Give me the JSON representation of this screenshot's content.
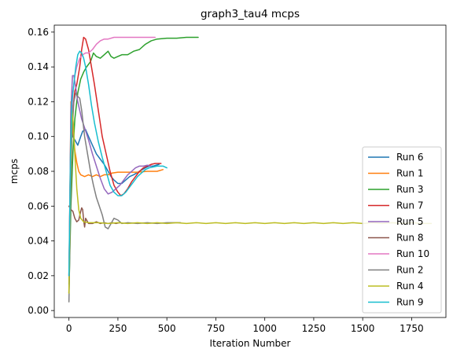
{
  "chart_data": {
    "type": "line",
    "title": "graph3_tau4 mcps",
    "xlabel": "Iteration Number",
    "ylabel": "mcps",
    "xlim": [
      -75,
      1925
    ],
    "ylim": [
      -0.004,
      0.164
    ],
    "xticks": [
      0,
      250,
      500,
      750,
      1000,
      1250,
      1500,
      1750
    ],
    "yticks": [
      0.0,
      0.02,
      0.04,
      0.06,
      0.08,
      0.1,
      0.12,
      0.14,
      0.16
    ],
    "ytick_labels": [
      "0.00",
      "0.02",
      "0.04",
      "0.06",
      "0.08",
      "0.10",
      "0.12",
      "0.14",
      "0.16"
    ],
    "grid": false,
    "legend_position": "lower-right",
    "series": [
      {
        "name": "Run 6",
        "color": "#1f77b4",
        "points": [
          [
            0,
            0.015
          ],
          [
            10,
            0.11
          ],
          [
            20,
            0.1
          ],
          [
            30,
            0.098
          ],
          [
            45,
            0.095
          ],
          [
            60,
            0.1
          ],
          [
            70,
            0.103
          ],
          [
            85,
            0.104
          ],
          [
            100,
            0.1
          ],
          [
            120,
            0.095
          ],
          [
            140,
            0.09
          ],
          [
            160,
            0.087
          ],
          [
            180,
            0.084
          ],
          [
            200,
            0.08
          ],
          [
            215,
            0.077
          ],
          [
            230,
            0.075
          ],
          [
            250,
            0.073
          ],
          [
            270,
            0.073
          ],
          [
            290,
            0.075
          ],
          [
            310,
            0.077
          ],
          [
            330,
            0.078
          ],
          [
            360,
            0.08
          ],
          [
            390,
            0.082
          ],
          [
            410,
            0.083
          ],
          [
            430,
            0.083
          ],
          [
            460,
            0.084
          ]
        ]
      },
      {
        "name": "Run 1",
        "color": "#ff7f0e",
        "points": [
          [
            0,
            0.01
          ],
          [
            10,
            0.12
          ],
          [
            20,
            0.105
          ],
          [
            30,
            0.092
          ],
          [
            40,
            0.085
          ],
          [
            50,
            0.08
          ],
          [
            60,
            0.078
          ],
          [
            80,
            0.077
          ],
          [
            100,
            0.078
          ],
          [
            120,
            0.077
          ],
          [
            140,
            0.078
          ],
          [
            160,
            0.077
          ],
          [
            180,
            0.078
          ],
          [
            200,
            0.078
          ],
          [
            220,
            0.079
          ],
          [
            250,
            0.0795
          ],
          [
            300,
            0.0795
          ],
          [
            350,
            0.0795
          ],
          [
            400,
            0.08
          ],
          [
            450,
            0.08
          ],
          [
            480,
            0.081
          ]
        ]
      },
      {
        "name": "Run 3",
        "color": "#2ca02c",
        "points": [
          [
            0,
            0.01
          ],
          [
            10,
            0.06
          ],
          [
            20,
            0.09
          ],
          [
            30,
            0.11
          ],
          [
            45,
            0.125
          ],
          [
            60,
            0.133
          ],
          [
            75,
            0.137
          ],
          [
            90,
            0.14
          ],
          [
            110,
            0.143
          ],
          [
            125,
            0.148
          ],
          [
            140,
            0.146
          ],
          [
            160,
            0.145
          ],
          [
            180,
            0.147
          ],
          [
            200,
            0.149
          ],
          [
            215,
            0.146
          ],
          [
            230,
            0.145
          ],
          [
            250,
            0.146
          ],
          [
            270,
            0.147
          ],
          [
            300,
            0.147
          ],
          [
            330,
            0.149
          ],
          [
            360,
            0.15
          ],
          [
            390,
            0.153
          ],
          [
            420,
            0.155
          ],
          [
            450,
            0.156
          ],
          [
            500,
            0.1565
          ],
          [
            550,
            0.1565
          ],
          [
            600,
            0.157
          ],
          [
            660,
            0.157
          ]
        ]
      },
      {
        "name": "Run 7",
        "color": "#d62728",
        "points": [
          [
            0,
            0.02
          ],
          [
            10,
            0.09
          ],
          [
            20,
            0.115
          ],
          [
            30,
            0.126
          ],
          [
            40,
            0.13
          ],
          [
            55,
            0.14
          ],
          [
            65,
            0.15
          ],
          [
            75,
            0.157
          ],
          [
            85,
            0.156
          ],
          [
            100,
            0.15
          ],
          [
            115,
            0.14
          ],
          [
            130,
            0.13
          ],
          [
            150,
            0.115
          ],
          [
            170,
            0.1
          ],
          [
            190,
            0.09
          ],
          [
            210,
            0.08
          ],
          [
            230,
            0.072
          ],
          [
            250,
            0.068
          ],
          [
            265,
            0.066
          ],
          [
            280,
            0.067
          ],
          [
            300,
            0.07
          ],
          [
            320,
            0.074
          ],
          [
            340,
            0.077
          ],
          [
            360,
            0.08
          ],
          [
            380,
            0.082
          ],
          [
            400,
            0.083
          ],
          [
            420,
            0.084
          ],
          [
            440,
            0.0845
          ],
          [
            470,
            0.0845
          ]
        ]
      },
      {
        "name": "Run 5",
        "color": "#9467bd",
        "points": [
          [
            0,
            0.02
          ],
          [
            10,
            0.115
          ],
          [
            18,
            0.135
          ],
          [
            25,
            0.135
          ],
          [
            35,
            0.128
          ],
          [
            45,
            0.12
          ],
          [
            55,
            0.115
          ],
          [
            65,
            0.11
          ],
          [
            80,
            0.105
          ],
          [
            100,
            0.098
          ],
          [
            120,
            0.09
          ],
          [
            140,
            0.083
          ],
          [
            160,
            0.076
          ],
          [
            180,
            0.07
          ],
          [
            200,
            0.067
          ],
          [
            220,
            0.068
          ],
          [
            240,
            0.07
          ],
          [
            260,
            0.072
          ],
          [
            280,
            0.075
          ],
          [
            300,
            0.078
          ],
          [
            320,
            0.08
          ],
          [
            340,
            0.082
          ],
          [
            360,
            0.083
          ],
          [
            380,
            0.083
          ],
          [
            400,
            0.0835
          ],
          [
            420,
            0.083
          ]
        ]
      },
      {
        "name": "Run 8",
        "color": "#8c564b",
        "points": [
          [
            0,
            0.06
          ],
          [
            10,
            0.058
          ],
          [
            20,
            0.057
          ],
          [
            30,
            0.053
          ],
          [
            40,
            0.051
          ],
          [
            50,
            0.052
          ],
          [
            60,
            0.057
          ],
          [
            65,
            0.059
          ],
          [
            70,
            0.058
          ],
          [
            75,
            0.052
          ],
          [
            80,
            0.048
          ],
          [
            85,
            0.053
          ],
          [
            90,
            0.052
          ],
          [
            100,
            0.05
          ],
          [
            120,
            0.05
          ],
          [
            140,
            0.051
          ],
          [
            160,
            0.05
          ],
          [
            180,
            0.0505
          ],
          [
            200,
            0.05
          ],
          [
            220,
            0.0505
          ],
          [
            240,
            0.05
          ],
          [
            260,
            0.0505
          ]
        ]
      },
      {
        "name": "Run 10",
        "color": "#e377c2",
        "points": [
          [
            0,
            0.02
          ],
          [
            10,
            0.1
          ],
          [
            20,
            0.125
          ],
          [
            30,
            0.135
          ],
          [
            40,
            0.14
          ],
          [
            55,
            0.145
          ],
          [
            70,
            0.147
          ],
          [
            85,
            0.148
          ],
          [
            100,
            0.148
          ],
          [
            120,
            0.15
          ],
          [
            140,
            0.153
          ],
          [
            160,
            0.155
          ],
          [
            180,
            0.156
          ],
          [
            200,
            0.156
          ],
          [
            230,
            0.157
          ],
          [
            260,
            0.157
          ],
          [
            300,
            0.157
          ],
          [
            350,
            0.157
          ],
          [
            400,
            0.157
          ],
          [
            440,
            0.157
          ]
        ]
      },
      {
        "name": "Run 2",
        "color": "#7f7f7f",
        "points": [
          [
            0,
            0.005
          ],
          [
            8,
            0.06
          ],
          [
            15,
            0.1
          ],
          [
            25,
            0.12
          ],
          [
            35,
            0.125
          ],
          [
            45,
            0.123
          ],
          [
            55,
            0.122
          ],
          [
            65,
            0.115
          ],
          [
            80,
            0.1
          ],
          [
            95,
            0.09
          ],
          [
            110,
            0.08
          ],
          [
            125,
            0.072
          ],
          [
            140,
            0.065
          ],
          [
            155,
            0.06
          ],
          [
            170,
            0.055
          ],
          [
            185,
            0.048
          ],
          [
            200,
            0.047
          ],
          [
            215,
            0.05
          ],
          [
            230,
            0.053
          ],
          [
            250,
            0.052
          ],
          [
            270,
            0.05
          ],
          [
            300,
            0.0505
          ],
          [
            350,
            0.05
          ],
          [
            400,
            0.0505
          ],
          [
            450,
            0.05
          ],
          [
            500,
            0.0505
          ],
          [
            570,
            0.0505
          ]
        ]
      },
      {
        "name": "Run 4",
        "color": "#bcbd22",
        "points": [
          [
            0,
            0.01
          ],
          [
            8,
            0.08
          ],
          [
            15,
            0.115
          ],
          [
            22,
            0.108
          ],
          [
            30,
            0.09
          ],
          [
            40,
            0.07
          ],
          [
            50,
            0.058
          ],
          [
            60,
            0.053
          ],
          [
            75,
            0.051
          ],
          [
            100,
            0.0505
          ],
          [
            150,
            0.0505
          ],
          [
            200,
            0.05
          ],
          [
            250,
            0.0505
          ],
          [
            300,
            0.05
          ],
          [
            350,
            0.0505
          ],
          [
            400,
            0.05
          ],
          [
            450,
            0.0505
          ],
          [
            500,
            0.05
          ],
          [
            550,
            0.0505
          ],
          [
            600,
            0.05
          ],
          [
            650,
            0.0505
          ],
          [
            700,
            0.05
          ],
          [
            750,
            0.0505
          ],
          [
            800,
            0.05
          ],
          [
            850,
            0.0505
          ],
          [
            900,
            0.05
          ],
          [
            950,
            0.0505
          ],
          [
            1000,
            0.05
          ],
          [
            1050,
            0.0505
          ],
          [
            1100,
            0.05
          ],
          [
            1150,
            0.0505
          ],
          [
            1200,
            0.05
          ],
          [
            1250,
            0.0505
          ],
          [
            1300,
            0.05
          ],
          [
            1350,
            0.0505
          ],
          [
            1400,
            0.05
          ],
          [
            1450,
            0.0505
          ],
          [
            1500,
            0.05
          ],
          [
            1550,
            0.0505
          ],
          [
            1600,
            0.05
          ],
          [
            1650,
            0.0505
          ],
          [
            1700,
            0.05
          ],
          [
            1750,
            0.0505
          ],
          [
            1800,
            0.05
          ],
          [
            1850,
            0.05
          ]
        ]
      },
      {
        "name": "Run 9",
        "color": "#17becf",
        "points": [
          [
            0,
            0.02
          ],
          [
            8,
            0.09
          ],
          [
            15,
            0.12
          ],
          [
            25,
            0.13
          ],
          [
            35,
            0.14
          ],
          [
            45,
            0.147
          ],
          [
            55,
            0.149
          ],
          [
            65,
            0.148
          ],
          [
            75,
            0.145
          ],
          [
            85,
            0.14
          ],
          [
            100,
            0.13
          ],
          [
            115,
            0.118
          ],
          [
            130,
            0.108
          ],
          [
            150,
            0.097
          ],
          [
            170,
            0.088
          ],
          [
            190,
            0.08
          ],
          [
            210,
            0.072
          ],
          [
            230,
            0.068
          ],
          [
            250,
            0.066
          ],
          [
            270,
            0.066
          ],
          [
            290,
            0.068
          ],
          [
            310,
            0.071
          ],
          [
            330,
            0.074
          ],
          [
            350,
            0.077
          ],
          [
            370,
            0.079
          ],
          [
            390,
            0.081
          ],
          [
            410,
            0.082
          ],
          [
            430,
            0.0825
          ],
          [
            450,
            0.083
          ],
          [
            480,
            0.083
          ],
          [
            500,
            0.082
          ]
        ]
      }
    ]
  }
}
